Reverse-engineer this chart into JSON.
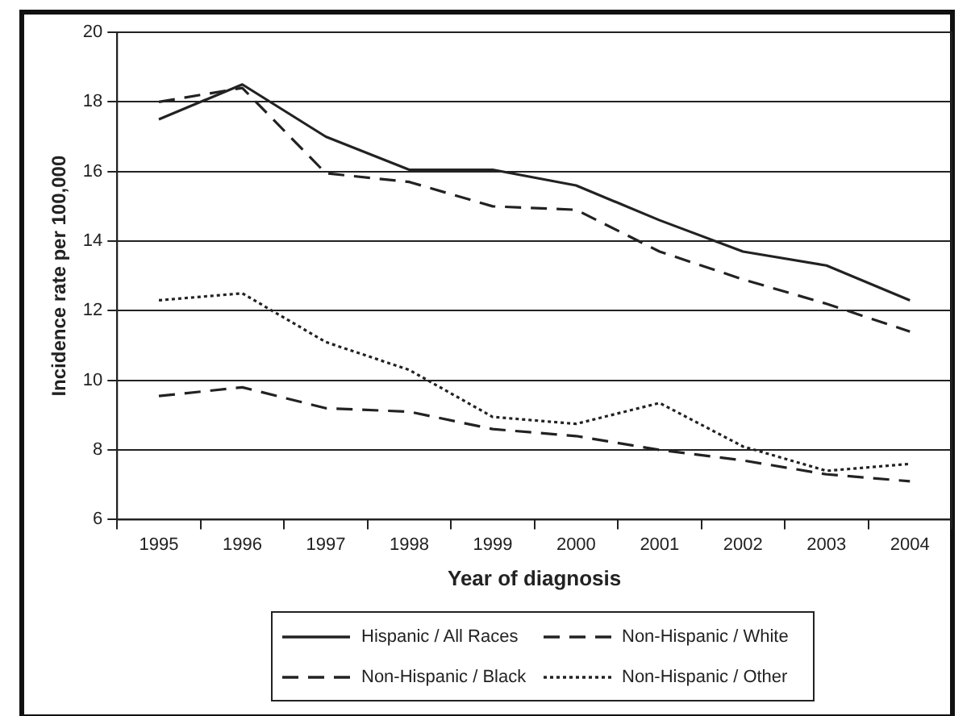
{
  "chart_data": {
    "type": "line",
    "xlabel": "Year of diagnosis",
    "ylabel": "Incidence rate per 100,000",
    "categories": [
      "1995",
      "1996",
      "1997",
      "1998",
      "1999",
      "2000",
      "2001",
      "2002",
      "2003",
      "2004"
    ],
    "series": [
      {
        "name": "Hispanic / All Races",
        "color": "#222222",
        "line_style": "solid",
        "values": [
          17.5,
          18.5,
          17.0,
          16.05,
          16.05,
          15.6,
          14.6,
          13.7,
          13.3,
          12.3
        ]
      },
      {
        "name": "Non-Hispanic / White",
        "color": "#222222",
        "line_style": "dashed",
        "values": [
          9.55,
          9.8,
          9.2,
          9.1,
          8.6,
          8.4,
          8.0,
          7.7,
          7.3,
          7.1
        ]
      },
      {
        "name": "Non-Hispanic / Black",
        "color": "#222222",
        "line_style": "dashed",
        "values": [
          18.0,
          18.4,
          15.95,
          15.7,
          15.0,
          14.9,
          13.7,
          12.9,
          12.2,
          11.4
        ]
      },
      {
        "name": "Non-Hispanic / Other",
        "color": "#222222",
        "line_style": "dotted",
        "values": [
          12.3,
          12.5,
          11.1,
          10.3,
          8.95,
          8.75,
          9.35,
          8.1,
          7.4,
          7.6
        ]
      }
    ],
    "ylim": [
      6,
      20
    ],
    "yticks": [
      6,
      8,
      10,
      12,
      14,
      16,
      18,
      20
    ],
    "grid": "y",
    "legend": "bottom",
    "marker": "none"
  }
}
